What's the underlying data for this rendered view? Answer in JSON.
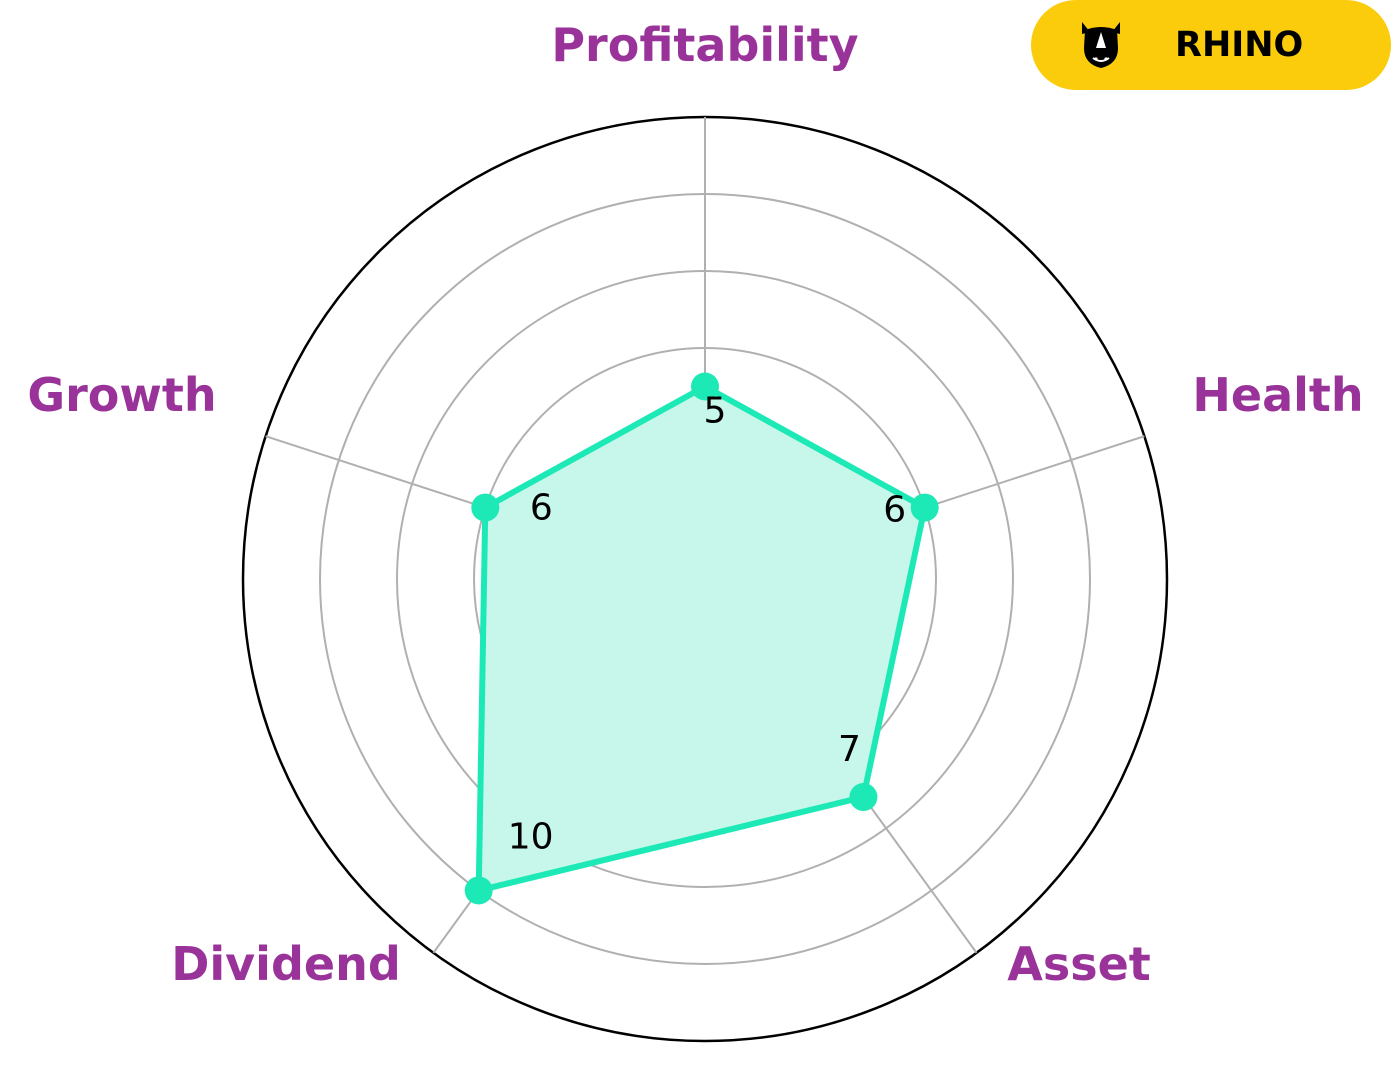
{
  "chart_data": {
    "type": "radar",
    "axes": [
      "Profitability",
      "Health",
      "Asset",
      "Dividend",
      "Growth"
    ],
    "values": [
      5,
      6,
      7,
      10,
      6
    ],
    "value_labels": [
      "5",
      "6",
      "7",
      "10",
      "6"
    ],
    "r_range": [
      0,
      12
    ],
    "grid": true,
    "grid_rings": [
      2,
      4,
      6,
      8,
      10,
      12
    ],
    "colors": {
      "series": "#1de9b6",
      "fill": "#c6f7ea",
      "grid": "#b0b0b0",
      "outer_ring": "#000000",
      "axis_label": "#993399"
    }
  },
  "logo": {
    "text": "RHINO",
    "icon": "rhino-head-icon",
    "background": "#facc0c"
  }
}
